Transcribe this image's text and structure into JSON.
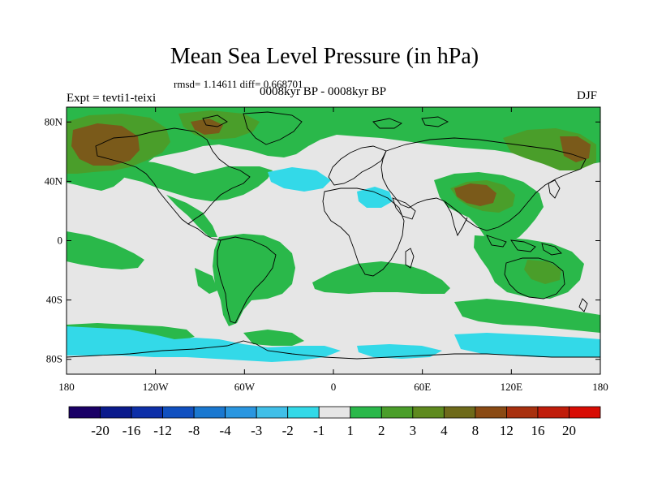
{
  "title": "Mean Sea Level Pressure (in hPa)",
  "stats": "rmsd= 1.14611 diff= 0.668701",
  "period": "0008kyr BP - 0008kyr BP",
  "experiment": "Expt = tevti1-teixi",
  "season": "DJF",
  "axes": {
    "y_ticks": [
      {
        "label": "80N",
        "lat": 80
      },
      {
        "label": "40N",
        "lat": 40
      },
      {
        "label": "0",
        "lat": 0
      },
      {
        "label": "40S",
        "lat": -40
      },
      {
        "label": "80S",
        "lat": -80
      }
    ],
    "x_ticks": [
      {
        "label": "180",
        "lon": -180
      },
      {
        "label": "120W",
        "lon": -120
      },
      {
        "label": "60W",
        "lon": -60
      },
      {
        "label": "0",
        "lon": 0
      },
      {
        "label": "60E",
        "lon": 60
      },
      {
        "label": "120E",
        "lon": 120
      },
      {
        "label": "180",
        "lon": 180
      }
    ]
  },
  "colorbar": {
    "colors": [
      "#1a0066",
      "#0a1a8c",
      "#0d2fa8",
      "#1050c0",
      "#1a78d0",
      "#2a96e0",
      "#40bfe8",
      "#33d9e8",
      "#e6e6e6",
      "#2ab84a",
      "#4a9e2a",
      "#5e8a1e",
      "#6e6a1a",
      "#8a4a14",
      "#a8300e",
      "#c01c0a",
      "#d80c04"
    ],
    "labels": [
      "-20",
      "-16",
      "-12",
      "-8",
      "-4",
      "-3",
      "-2",
      "-1",
      "1",
      "2",
      "3",
      "4",
      "8",
      "12",
      "16",
      "20"
    ]
  },
  "palette": {
    "background": "#e6e6e6",
    "green": "#2ab84a",
    "darkgreen": "#4a9e2a",
    "olive": "#6e6a1a",
    "brown": "#8a4a14",
    "cyan": "#33d9e8"
  }
}
